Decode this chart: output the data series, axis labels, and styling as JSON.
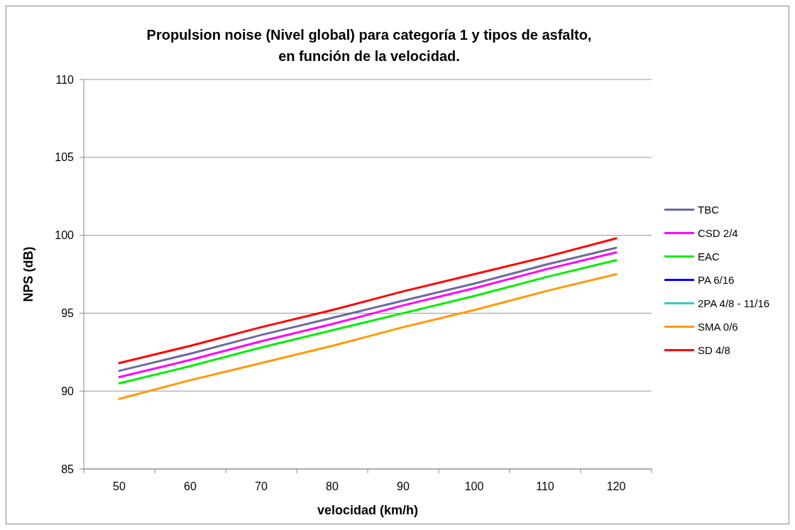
{
  "chart_data": {
    "type": "line",
    "title": "Propulsion noise (Nivel global) para categoría 1 y tipos de asfalto,\nen función de la velocidad.",
    "xlabel": "velocidad (km/h)",
    "ylabel": "NPS (dB)",
    "categories": [
      "50",
      "60",
      "70",
      "80",
      "90",
      "100",
      "110",
      "120"
    ],
    "ylim": [
      85,
      110
    ],
    "yticks": [
      85,
      90,
      95,
      100,
      105,
      110
    ],
    "grid": "y",
    "legend": "right",
    "marker": "none",
    "line_style": "solid",
    "series": [
      {
        "name": "TBC",
        "color": "#6b6b9e",
        "values": [
          91.3,
          92.4,
          93.6,
          94.7,
          95.8,
          96.9,
          98.1,
          99.2
        ]
      },
      {
        "name": "CSD 2/4",
        "color": "#ff00ff",
        "values": [
          90.9,
          92.0,
          93.2,
          94.3,
          95.5,
          96.6,
          97.8,
          98.9
        ]
      },
      {
        "name": "EAC",
        "color": "#00ee00",
        "values": [
          90.5,
          91.6,
          92.8,
          93.9,
          95.0,
          96.1,
          97.3,
          98.4
        ]
      },
      {
        "name": "PA 6/16",
        "color": "#0000ff",
        "values": [
          null,
          null,
          null,
          null,
          null,
          null,
          null,
          null
        ]
      },
      {
        "name": "2PA 4/8 - 11/16",
        "color": "#33cccc",
        "values": [
          null,
          null,
          null,
          null,
          null,
          null,
          null,
          null
        ]
      },
      {
        "name": "SMA 0/6",
        "color": "#ff9900",
        "values": [
          89.5,
          90.7,
          91.8,
          92.9,
          94.1,
          95.2,
          96.4,
          97.5
        ]
      },
      {
        "name": "SD 4/8",
        "color": "#ff0000",
        "values": [
          91.8,
          92.9,
          94.1,
          95.2,
          96.4,
          97.5,
          98.6,
          99.8
        ]
      }
    ]
  }
}
